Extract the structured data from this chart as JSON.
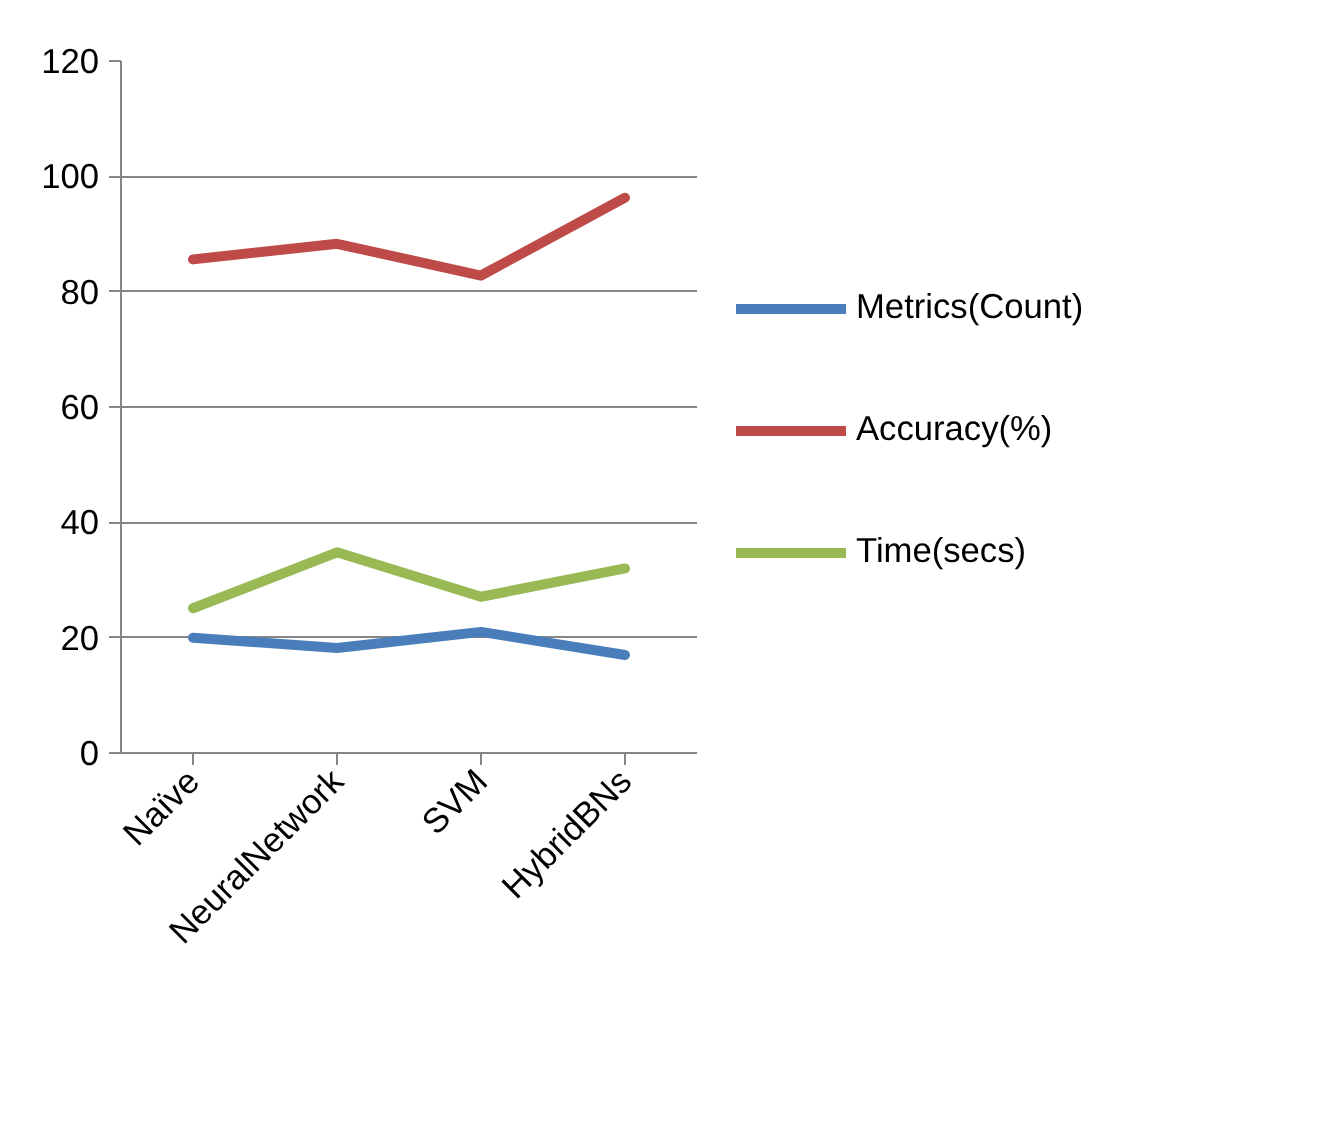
{
  "chart_data": {
    "type": "line",
    "categories": [
      "Naïve",
      "NeuralNetwork",
      "SVM",
      "HybridBNs"
    ],
    "series": [
      {
        "name": "Metrics(Count)",
        "color": "#4a7ebb",
        "values": [
          20,
          18.2,
          21,
          17
        ]
      },
      {
        "name": "Accuracy(%)",
        "color": "#be4b48",
        "values": [
          85.6,
          88.3,
          82.8,
          96.3
        ]
      },
      {
        "name": "Time(secs)",
        "color": "#98b954",
        "values": [
          25.1,
          34.8,
          27.1,
          32
        ]
      }
    ],
    "ylim": [
      0,
      120
    ],
    "yticks": [
      0,
      20,
      40,
      60,
      80,
      100,
      120
    ],
    "grid": "y",
    "legend": "right",
    "marker": "none",
    "line_style": "solid"
  }
}
